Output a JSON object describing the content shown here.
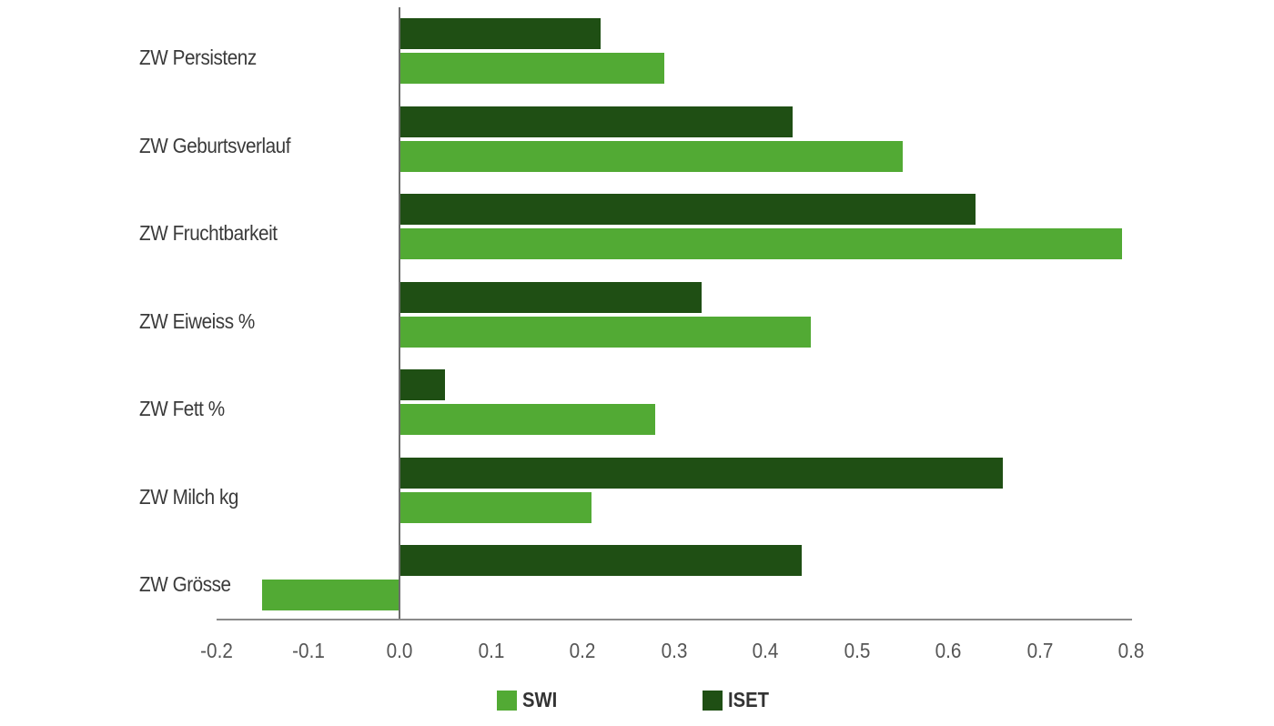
{
  "chart_data": {
    "type": "bar",
    "orientation": "horizontal",
    "title": "",
    "xlabel": "",
    "ylabel": "",
    "categories": [
      "ZW Persistenz",
      "ZW Geburtsverlauf",
      "ZW Fruchtbarkeit",
      "ZW Eiweiss %",
      "ZW Fett %",
      "ZW Milch kg",
      "ZW Grösse"
    ],
    "series": [
      {
        "name": "ISET",
        "color": "#1f4f14",
        "values": [
          0.22,
          0.43,
          0.63,
          0.33,
          0.05,
          0.66,
          0.44
        ]
      },
      {
        "name": "SWI",
        "color": "#52aa34",
        "values": [
          0.29,
          0.55,
          0.79,
          0.45,
          0.28,
          0.21,
          -0.15
        ]
      }
    ],
    "xlim": [
      -0.2,
      0.8
    ],
    "xticks": [
      "-0.2",
      "-0.1",
      "0.0",
      "0.1",
      "0.2",
      "0.3",
      "0.4",
      "0.5",
      "0.6",
      "0.7",
      "0.8"
    ],
    "grid": false,
    "legend_position": "bottom",
    "legend": [
      {
        "label": "SWI",
        "color": "#52aa34"
      },
      {
        "label": "ISET",
        "color": "#1f4f14"
      }
    ]
  }
}
